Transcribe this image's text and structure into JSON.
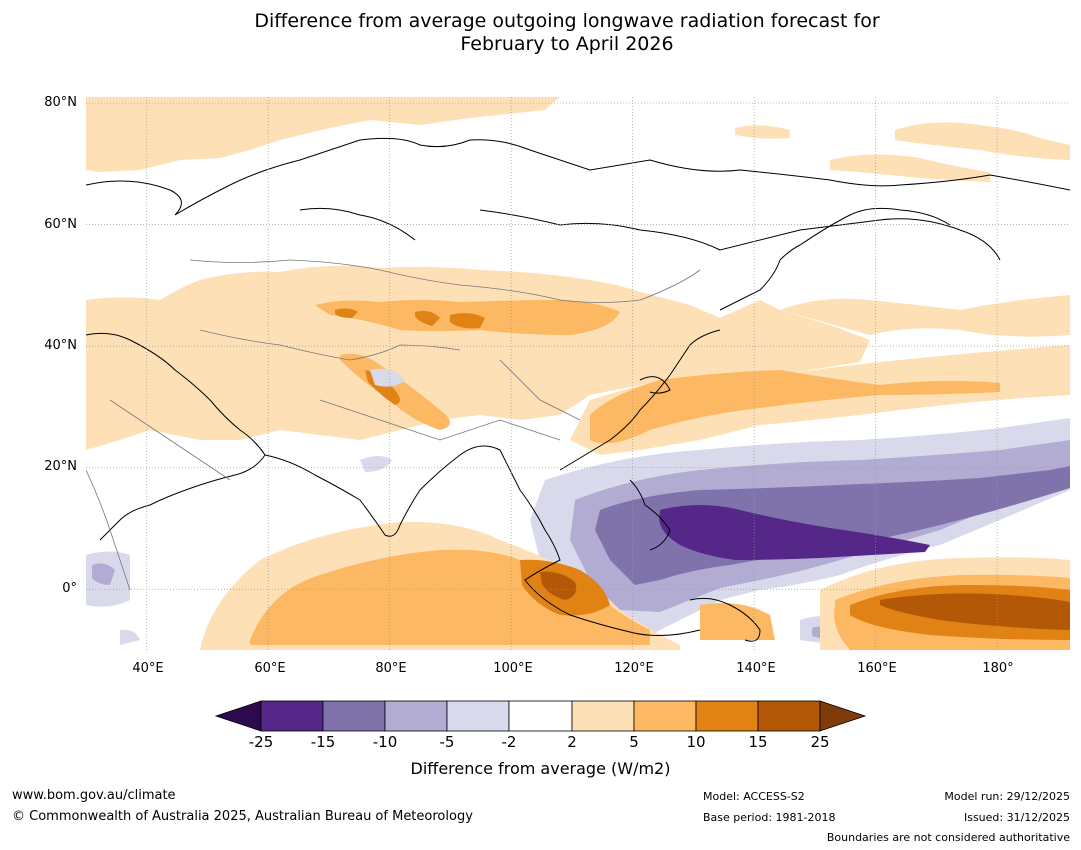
{
  "title": {
    "line1": "Difference from average outgoing longwave radiation forecast for",
    "line2": "February to April 2026"
  },
  "map": {
    "lat_labels": [
      "80°N",
      "60°N",
      "40°N",
      "20°N",
      "0°"
    ],
    "lon_labels": [
      "40°E",
      "60°E",
      "80°E",
      "100°E",
      "120°E",
      "140°E",
      "160°E",
      "180°"
    ],
    "extent": {
      "lon_min": 30,
      "lon_max": 192,
      "lat_min": -10,
      "lat_max": 81
    }
  },
  "colorbar": {
    "ticks": [
      "-25",
      "-15",
      "-10",
      "-5",
      "-2",
      "2",
      "5",
      "10",
      "15",
      "25"
    ],
    "colors": [
      "#2d0a4e",
      "#542788",
      "#8073ac",
      "#b2abd2",
      "#d8daeb",
      "#ffffff",
      "#fee0b6",
      "#fdb863",
      "#e08214",
      "#b35806",
      "#7f3b08"
    ],
    "label": "Difference from average (W/m2)"
  },
  "footer": {
    "website": "www.bom.gov.au/climate",
    "copyright": "© Commonwealth of Australia 2025, Australian Bureau of Meteorology",
    "model": "Model: ACCESS-S2",
    "base_period": "Base period: 1981-2018",
    "model_run": "Model run: 29/12/2025",
    "issued": "Issued: 31/12/2025",
    "boundaries": "Boundaries are not considered authoritative"
  }
}
